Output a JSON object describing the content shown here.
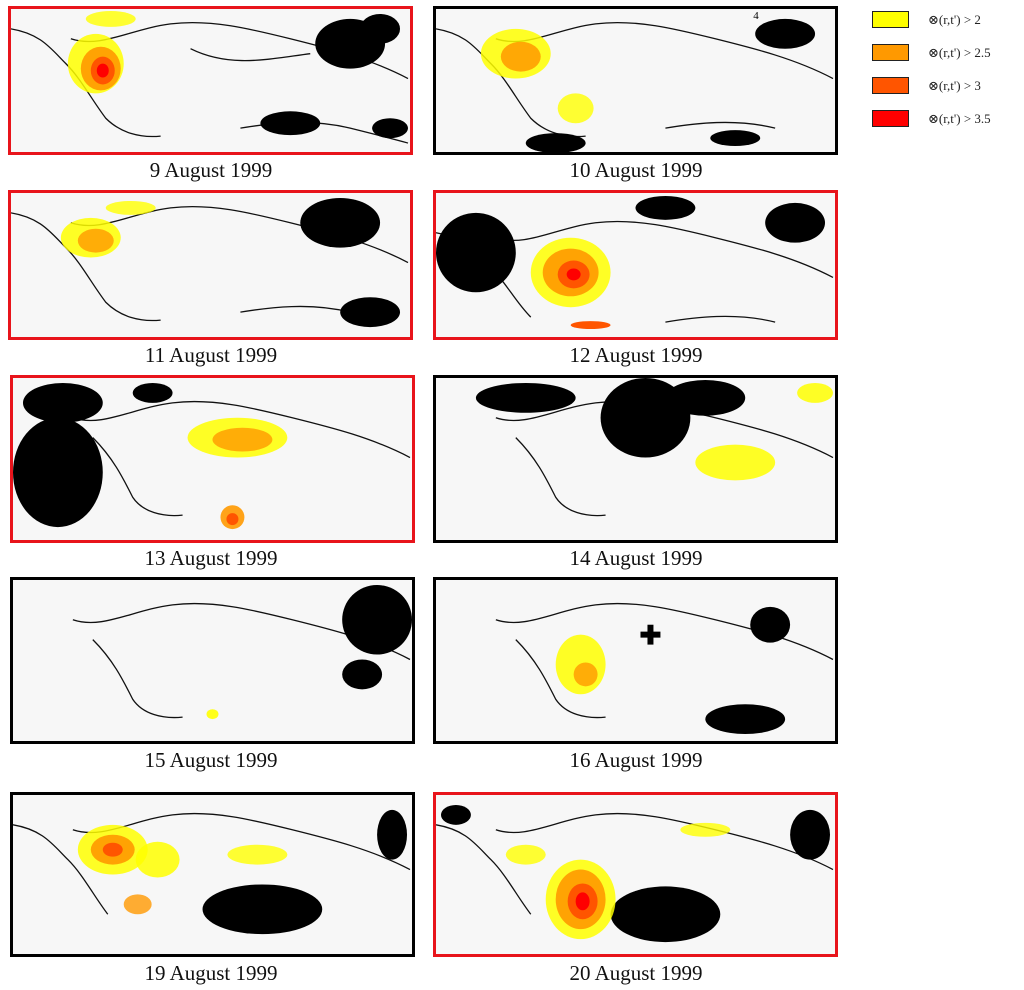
{
  "legend": {
    "items": [
      {
        "label": "⊗(r,t') > 2",
        "color": "#ffff00"
      },
      {
        "label": "⊗(r,t') > 2.5",
        "color": "#ff9900"
      },
      {
        "label": "⊗(r,t') > 3",
        "color": "#ff5500"
      },
      {
        "label": "⊗(r,t') > 3.5",
        "color": "#ff0000"
      }
    ]
  },
  "panels": [
    {
      "caption": "9 August 1999",
      "border": "#e8141b"
    },
    {
      "caption": "10 August 1999",
      "border": "#000000"
    },
    {
      "caption": "11 August 1999",
      "border": "#e8141b"
    },
    {
      "caption": "12 August 1999",
      "border": "#e8141b"
    },
    {
      "caption": "13 August 1999",
      "border": "#e8141b"
    },
    {
      "caption": "14 August 1999",
      "border": "#000000"
    },
    {
      "caption": "15 August 1999",
      "border": "#000000"
    },
    {
      "caption": "16 August 1999",
      "border": "#000000"
    },
    {
      "caption": "19 August 1999",
      "border": "#000000"
    },
    {
      "caption": "20 August 1999",
      "border": "#e8141b"
    }
  ],
  "panel_10_marker": "4"
}
